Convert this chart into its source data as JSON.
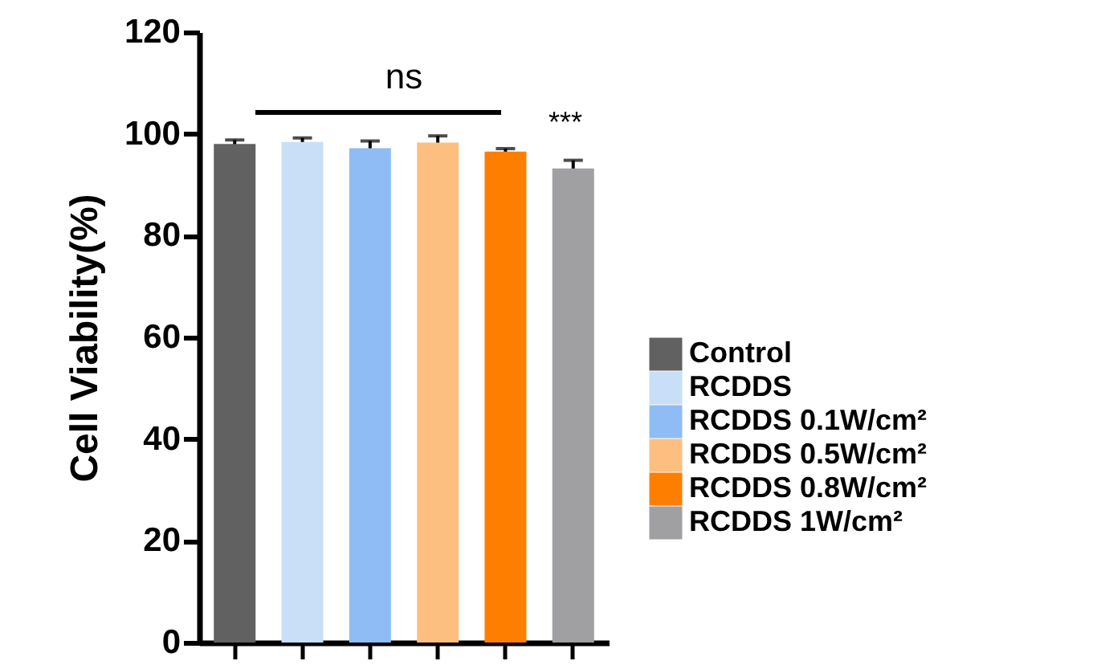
{
  "chart_data": {
    "type": "bar",
    "ylabel": "Cell Viability(%)",
    "categories": [
      null,
      null,
      null,
      null,
      null,
      null
    ],
    "stacked": true,
    "series": [
      {
        "name": "Control",
        "color": "#616161",
        "values": [
          98.0,
          null,
          null,
          null,
          null,
          null
        ],
        "errors": [
          0.8,
          null,
          null,
          null,
          null,
          null
        ]
      },
      {
        "name": "RCDDS",
        "color": "#c9dff7",
        "values": [
          null,
          98.4,
          null,
          null,
          null,
          null
        ],
        "errors": [
          null,
          0.8,
          null,
          null,
          null,
          null
        ]
      },
      {
        "name": "RCDDS 0.1W/cm²",
        "color": "#8fbcf5",
        "values": [
          null,
          null,
          97.2,
          null,
          null,
          null
        ],
        "errors": [
          null,
          null,
          1.4,
          null,
          null,
          null
        ]
      },
      {
        "name": "RCDDS 0.5W/cm²",
        "color": "#fdbf80",
        "values": [
          null,
          null,
          null,
          98.3,
          null,
          null
        ],
        "errors": [
          null,
          null,
          null,
          1.3,
          null,
          null
        ]
      },
      {
        "name": "RCDDS 0.8W/cm²",
        "color": "#fe7f00",
        "values": [
          null,
          null,
          null,
          null,
          96.5,
          null
        ],
        "errors": [
          null,
          null,
          null,
          null,
          0.6,
          null
        ]
      },
      {
        "name": "RCDDS 1W/cm²",
        "color": "#a0a0a3",
        "values": [
          null,
          null,
          null,
          null,
          null,
          93.2
        ],
        "errors": [
          null,
          null,
          null,
          null,
          null,
          1.6
        ]
      }
    ],
    "ylim": [
      0,
      120
    ],
    "yticks": [
      0,
      20,
      40,
      60,
      80,
      100,
      120
    ],
    "tick_labels": "y",
    "grid": false,
    "legend": "right",
    "annotations": [
      "ns",
      "***"
    ]
  }
}
